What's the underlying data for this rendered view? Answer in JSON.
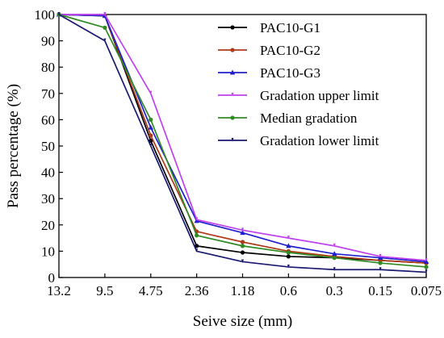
{
  "chart_data": {
    "type": "line",
    "title": "",
    "xlabel": "Seive size (mm)",
    "ylabel": "Pass percentage (%)",
    "categories": [
      "13.2",
      "9.5",
      "4.75",
      "2.36",
      "1.18",
      "0.6",
      "0.3",
      "0.15",
      "0.075"
    ],
    "yticks": [
      "0",
      "10",
      "20",
      "30",
      "40",
      "50",
      "60",
      "70",
      "80",
      "90",
      "100"
    ],
    "ylim": [
      0,
      100
    ],
    "grid": false,
    "legend_position": "top-right",
    "series": [
      {
        "name": "PAC10-G1",
        "color": "#000000",
        "marker": "dot",
        "values": [
          100,
          99.5,
          52,
          12,
          9.5,
          8,
          7.5,
          6.5,
          5.5
        ]
      },
      {
        "name": "PAC10-G2",
        "color": "#b03a17",
        "marker": "dot",
        "values": [
          100,
          99.5,
          54,
          17.5,
          13.5,
          10,
          8,
          6.5,
          5.5
        ]
      },
      {
        "name": "PAC10-G3",
        "color": "#1f1fd0",
        "marker": "triangle",
        "values": [
          100,
          99.5,
          57,
          21.5,
          17,
          12,
          9,
          7.5,
          6
        ]
      },
      {
        "name": "Gradation upper limit",
        "color": "#c040f0",
        "marker": "tick",
        "values": [
          100,
          100,
          70,
          22,
          18,
          15,
          12,
          8,
          6.5
        ]
      },
      {
        "name": "Median gradation",
        "color": "#2e8b22",
        "marker": "dot",
        "values": [
          100,
          95,
          60,
          16,
          12,
          9.5,
          7.5,
          5.5,
          4
        ]
      },
      {
        "name": "Gradation lower limit",
        "color": "#1a1a70",
        "marker": "tick",
        "values": [
          100,
          90,
          50,
          10,
          6,
          4,
          3,
          3,
          2
        ]
      }
    ]
  }
}
